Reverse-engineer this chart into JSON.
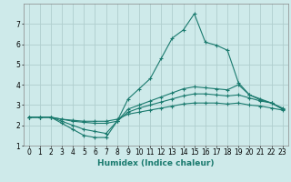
{
  "xlabel": "Humidex (Indice chaleur)",
  "x_values": [
    0,
    1,
    2,
    3,
    4,
    5,
    6,
    7,
    8,
    9,
    10,
    11,
    12,
    13,
    14,
    15,
    16,
    17,
    18,
    19,
    20,
    21,
    22,
    23
  ],
  "line1": [
    2.4,
    2.4,
    2.4,
    2.1,
    1.8,
    1.5,
    1.4,
    1.4,
    2.2,
    3.3,
    3.8,
    4.3,
    5.3,
    6.3,
    6.7,
    7.5,
    6.1,
    5.95,
    5.7,
    4.1,
    3.5,
    3.25,
    3.1,
    2.8
  ],
  "line2": [
    2.4,
    2.4,
    2.4,
    2.2,
    2.0,
    1.8,
    1.7,
    1.6,
    2.2,
    2.8,
    3.0,
    3.2,
    3.4,
    3.6,
    3.8,
    3.9,
    3.85,
    3.8,
    3.75,
    4.0,
    3.5,
    3.3,
    3.1,
    2.8
  ],
  "line3": [
    2.4,
    2.4,
    2.4,
    2.3,
    2.2,
    2.15,
    2.1,
    2.1,
    2.2,
    2.65,
    2.85,
    3.0,
    3.15,
    3.3,
    3.45,
    3.55,
    3.55,
    3.5,
    3.45,
    3.5,
    3.35,
    3.2,
    3.1,
    2.85
  ],
  "line4": [
    2.4,
    2.4,
    2.4,
    2.3,
    2.25,
    2.2,
    2.2,
    2.2,
    2.3,
    2.55,
    2.65,
    2.75,
    2.85,
    2.95,
    3.05,
    3.1,
    3.1,
    3.1,
    3.05,
    3.1,
    3.0,
    2.95,
    2.85,
    2.75
  ],
  "line_color": "#1a7a6e",
  "bg_color": "#ceeaea",
  "grid_color": "#b0cece",
  "ylim": [
    1,
    8
  ],
  "xlim": [
    -0.5,
    23.5
  ],
  "yticks": [
    1,
    2,
    3,
    4,
    5,
    6,
    7
  ],
  "xticks": [
    0,
    1,
    2,
    3,
    4,
    5,
    6,
    7,
    8,
    9,
    10,
    11,
    12,
    13,
    14,
    15,
    16,
    17,
    18,
    19,
    20,
    21,
    22,
    23
  ],
  "marker": "+",
  "markersize": 3.5,
  "linewidth": 0.8
}
